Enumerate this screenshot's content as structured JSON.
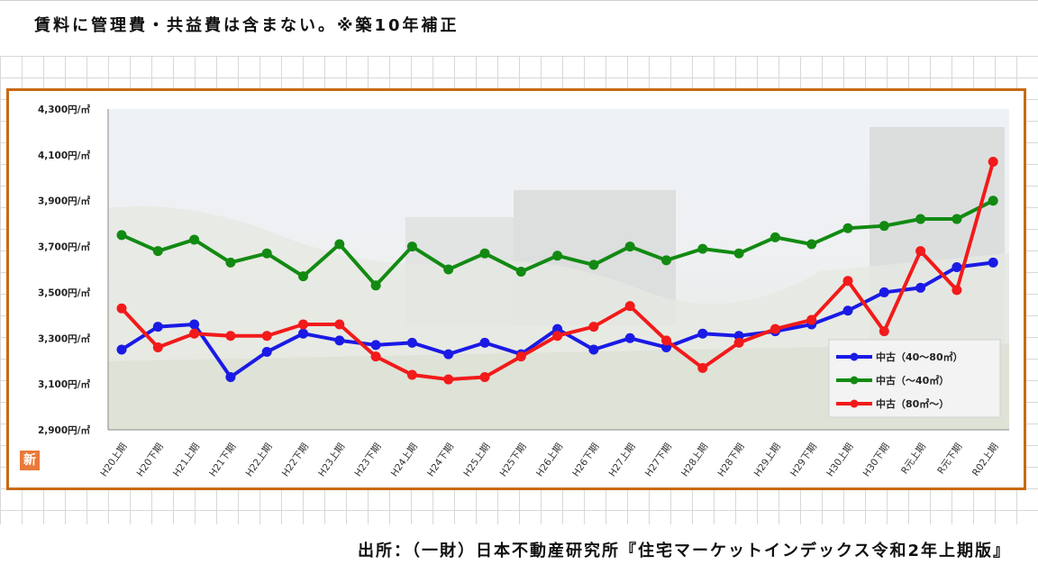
{
  "header": {
    "note": "賃料に管理費・共益費は含まない。※築10年補正"
  },
  "footer": {
    "source": "出所：（一財）日本不動産研究所『住宅マーケットインデックス令和2年上期版』"
  },
  "badge": {
    "label": "新"
  },
  "colors": {
    "frame": "#c86a14",
    "blue": "#1a1ae6",
    "green": "#128a12",
    "red": "#f21a1a"
  },
  "chart_data": {
    "type": "line",
    "title": "",
    "xlabel": "",
    "ylabel": "",
    "categories": [
      "H20上期",
      "H20下期",
      "H21上期",
      "H21下期",
      "H22上期",
      "H22下期",
      "H23上期",
      "H23下期",
      "H24上期",
      "H24下期",
      "H25上期",
      "H25下期",
      "H26上期",
      "H26下期",
      "H27上期",
      "H27下期",
      "H28上期",
      "H28下期",
      "H29上期",
      "H29下期",
      "H30上期",
      "H30下期",
      "R元上期",
      "R元下期",
      "R02上期"
    ],
    "yticks": [
      "4,300円/㎡",
      "4,100円/㎡",
      "3,900円/㎡",
      "3,700円/㎡",
      "3,500円/㎡",
      "3,300円/㎡",
      "3,100円/㎡",
      "2,900円/㎡"
    ],
    "ylim": [
      2900,
      4300
    ],
    "grid": false,
    "legend_position": "bottom-right",
    "series": [
      {
        "name": "中古（40～80㎡）",
        "color": "#1a1ae6",
        "values": [
          3250,
          3350,
          3360,
          3130,
          3240,
          3320,
          3290,
          3270,
          3280,
          3230,
          3280,
          3230,
          3340,
          3250,
          3300,
          3260,
          3320,
          3310,
          3330,
          3360,
          3420,
          3500,
          3520,
          3610,
          3630
        ]
      },
      {
        "name": "中古（～40㎡）",
        "color": "#128a12",
        "values": [
          3750,
          3680,
          3730,
          3630,
          3670,
          3570,
          3710,
          3530,
          3700,
          3600,
          3670,
          3590,
          3660,
          3620,
          3700,
          3640,
          3690,
          3670,
          3740,
          3710,
          3780,
          3790,
          3820,
          3820,
          3900
        ]
      },
      {
        "name": "中古（80㎡～）",
        "color": "#f21a1a",
        "values": [
          3430,
          3260,
          3320,
          3310,
          3310,
          3360,
          3360,
          3220,
          3140,
          3120,
          3130,
          3220,
          3310,
          3350,
          3440,
          3290,
          3170,
          3280,
          3340,
          3380,
          3550,
          3330,
          3680,
          3510,
          4070
        ]
      }
    ]
  }
}
